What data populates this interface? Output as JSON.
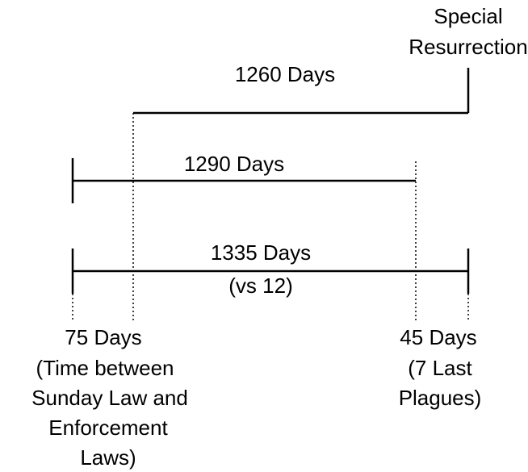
{
  "special_resurrection": [
    "Special",
    "Resurrection"
  ],
  "periods": [
    {
      "label": "1260 Days"
    },
    {
      "label": "1290 Days"
    },
    {
      "label": "1335 Days",
      "note": "(vs 12)"
    }
  ],
  "left_note": [
    "75 Days",
    "(Time between",
    "Sunday Law and",
    "Enforcement",
    "Laws)"
  ],
  "right_note": [
    "45 Days",
    "(7 Last",
    "Plagues)"
  ]
}
